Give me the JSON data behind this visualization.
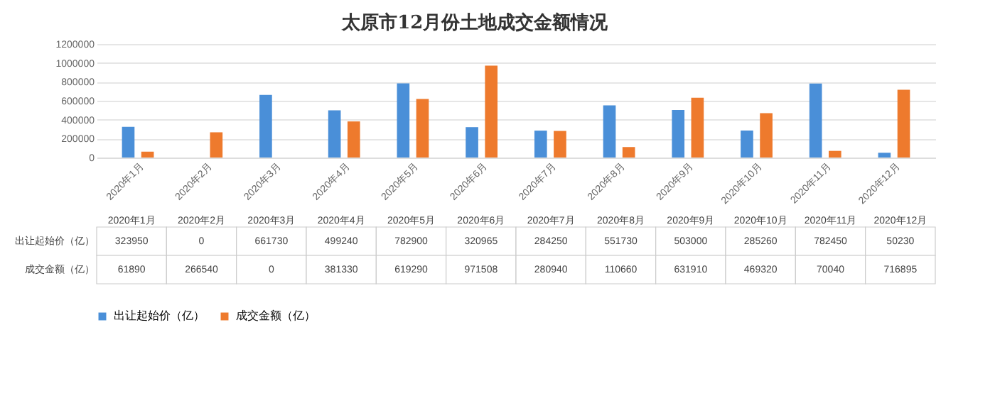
{
  "chart_data": {
    "type": "bar",
    "title": "太原市12月份土地成交金额情况",
    "categories": [
      "2020年1月",
      "2020年2月",
      "2020年3月",
      "2020年4月",
      "2020年5月",
      "2020年6月",
      "2020年7月",
      "2020年8月",
      "2020年9月",
      "2020年10月",
      "2020年11月",
      "2020年12月"
    ],
    "series": [
      {
        "name": "出让起始价（亿）",
        "color": "#4a8fd8",
        "values": [
          323950,
          0,
          661730,
          499240,
          782900,
          320965,
          284250,
          551730,
          503000,
          285260,
          782450,
          50230
        ]
      },
      {
        "name": "成交金额（亿）",
        "color": "#ee7a2d",
        "values": [
          61890,
          266540,
          0,
          381330,
          619290,
          971508,
          280940,
          110660,
          631910,
          469320,
          70040,
          716895
        ]
      }
    ],
    "ylim": [
      0,
      1200000
    ],
    "yticks": [
      0,
      200000,
      400000,
      600000,
      800000,
      1000000,
      1200000
    ],
    "grid": "y",
    "legend": "bottom",
    "data_labels": true
  }
}
